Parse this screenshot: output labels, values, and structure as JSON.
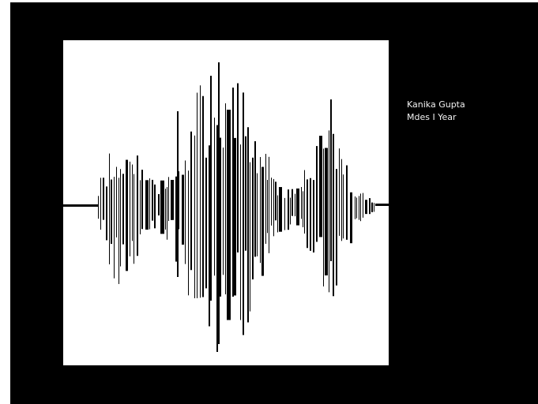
{
  "slide": {
    "author": "Kanika Gupta",
    "course": "Mdes I Year",
    "background_color": "#000000",
    "panel_color": "#ffffff",
    "text_color": "#f2f2f2"
  },
  "waveform": {
    "description": "sound waveform illustration"
  }
}
